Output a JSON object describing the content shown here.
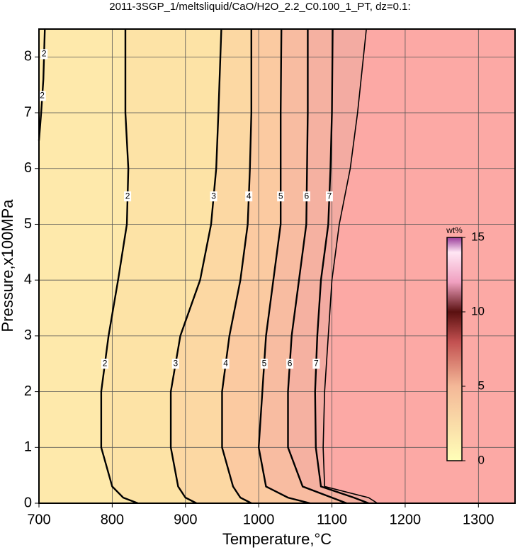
{
  "chart_data": {
    "type": "contour",
    "title": "2011-3SGP_1/meltsliquid/CaO/H2O_2.2_C0.100_1_PT, dz=0.1:",
    "xlabel": "Temperature,°C",
    "ylabel": "Pressure,x100MPa",
    "xlim": [
      700,
      1350
    ],
    "ylim": [
      0,
      8.5
    ],
    "xticks": [
      700,
      800,
      900,
      1000,
      1100,
      1200,
      1300
    ],
    "yticks": [
      0,
      1,
      2,
      3,
      4,
      5,
      6,
      7,
      8
    ],
    "grid": true,
    "background": "#fee9ab",
    "contours": [
      {
        "label": 2,
        "fill": null,
        "x": [
          700,
          703,
          706,
          708
        ],
        "y": [
          6.5,
          7,
          7.6,
          8.5
        ]
      },
      {
        "label": 2,
        "fill": "#fde3a6",
        "x": [
          835,
          815,
          800,
          785,
          785,
          795,
          808,
          820,
          822,
          818,
          818
        ],
        "y": [
          0,
          0.1,
          0.3,
          1,
          2,
          3,
          4,
          5,
          6,
          7,
          8.5
        ]
      },
      {
        "label": 3,
        "fill": "#fcd8a3",
        "x": [
          915,
          900,
          890,
          880,
          880,
          893,
          920,
          935,
          942,
          945,
          949
        ],
        "y": [
          0,
          0.1,
          0.3,
          1,
          2,
          3,
          4,
          5,
          6,
          7,
          8.5
        ]
      },
      {
        "label": 4,
        "fill": "#fbcaa1",
        "x": [
          990,
          975,
          965,
          950,
          950,
          960,
          975,
          985,
          988,
          990,
          990
        ],
        "y": [
          0,
          0.1,
          0.3,
          1,
          2,
          3,
          4,
          5,
          6,
          7,
          8.5
        ]
      },
      {
        "label": 5,
        "fill": "#f8bca1",
        "x": [
          1070,
          1040,
          1010,
          1000,
          1005,
          1010,
          1020,
          1030,
          1030,
          1030,
          1031
        ],
        "y": [
          0,
          0.1,
          0.3,
          1,
          2,
          3,
          4,
          5,
          6,
          7,
          8.5
        ]
      },
      {
        "label": 6,
        "fill": "#f5b1a1",
        "x": [
          1120,
          1100,
          1060,
          1040,
          1040,
          1045,
          1055,
          1065,
          1066,
          1067,
          1067
        ],
        "y": [
          0,
          0.1,
          0.3,
          1,
          2,
          3,
          4,
          5,
          6,
          7,
          8.5
        ]
      },
      {
        "label": 7,
        "fill": "#f3aba2",
        "x": [
          1150,
          1130,
          1085,
          1078,
          1077,
          1080,
          1085,
          1095,
          1098,
          1100,
          1101
        ],
        "y": [
          0,
          0.1,
          0.3,
          1,
          2,
          3,
          4,
          5,
          6,
          7,
          8.5
        ]
      },
      {
        "label": null,
        "fill": "#fca9a5",
        "x": [
          1162,
          1150,
          1090,
          1088,
          1090,
          1095,
          1100,
          1110,
          1125,
          1135,
          1147
        ],
        "y": [
          0,
          0.1,
          0.3,
          1,
          2,
          3,
          4,
          5,
          6,
          7,
          8.5
        ]
      }
    ],
    "colorbar": {
      "title": "wt%",
      "lim": [
        0,
        15
      ],
      "ticks": [
        0,
        5,
        10,
        15
      ],
      "colormap": [
        {
          "value": 0,
          "color": "#ffffb8"
        },
        {
          "value": 5,
          "color": "#f4b898"
        },
        {
          "value": 8,
          "color": "#c25050"
        },
        {
          "value": 10,
          "color": "#5a1010"
        },
        {
          "value": 12,
          "color": "#f0a0c0"
        },
        {
          "value": 14,
          "color": "#ffe6f4"
        },
        {
          "value": 15,
          "color": "#9a3c9a"
        }
      ]
    }
  }
}
